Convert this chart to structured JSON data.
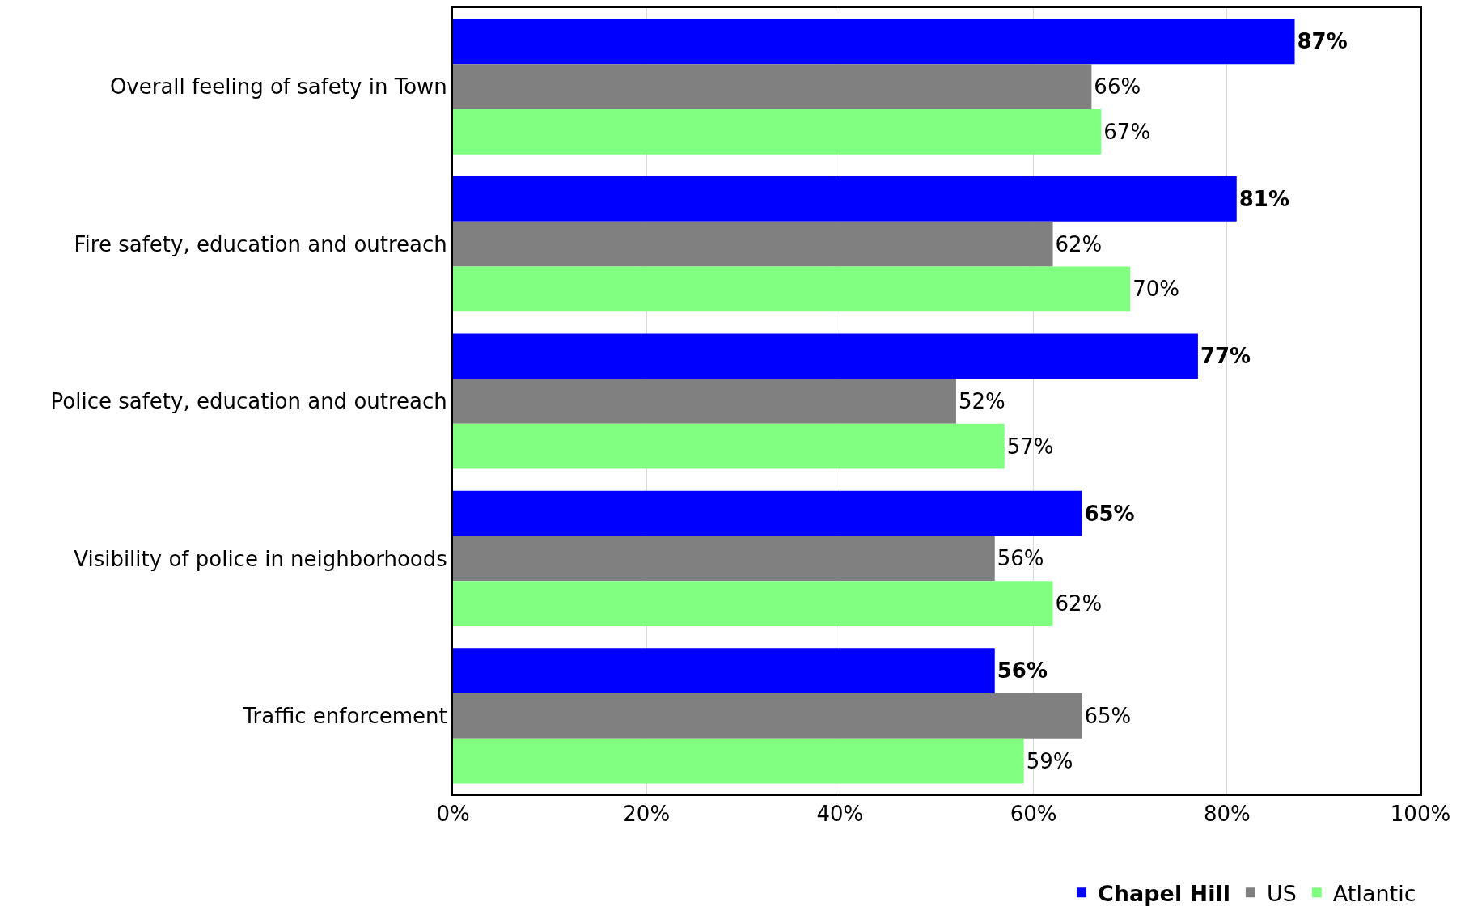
{
  "chart_data": {
    "type": "bar",
    "orientation": "horizontal",
    "categories": [
      "Overall feeling of safety in Town",
      "Fire safety, education and outreach",
      "Police safety, education and outreach",
      "Visibility of police in neighborhoods",
      "Traffic enforcement"
    ],
    "series": [
      {
        "name": "Chapel Hill",
        "color": "#0000ff",
        "values": [
          87,
          81,
          77,
          65,
          56
        ],
        "value_labels": [
          "87%",
          "81%",
          "77%",
          "65%",
          "56%"
        ]
      },
      {
        "name": "US",
        "color": "#808080",
        "values": [
          66,
          62,
          52,
          56,
          65
        ],
        "value_labels": [
          "66%",
          "62%",
          "52%",
          "56%",
          "65%"
        ]
      },
      {
        "name": "Atlantic",
        "color": "#80ff80",
        "values": [
          67,
          70,
          57,
          62,
          59
        ],
        "value_labels": [
          "67%",
          "70%",
          "57%",
          "62%",
          "59%"
        ]
      }
    ],
    "xlim": [
      0,
      100
    ],
    "xticks": [
      {
        "value": 0,
        "label": "0%"
      },
      {
        "value": 20,
        "label": "20%"
      },
      {
        "value": 40,
        "label": "40%"
      },
      {
        "value": 60,
        "label": "60%"
      },
      {
        "value": 80,
        "label": "80%"
      },
      {
        "value": 100,
        "label": "100%"
      }
    ],
    "grid": "x",
    "legend": "bottom right"
  }
}
